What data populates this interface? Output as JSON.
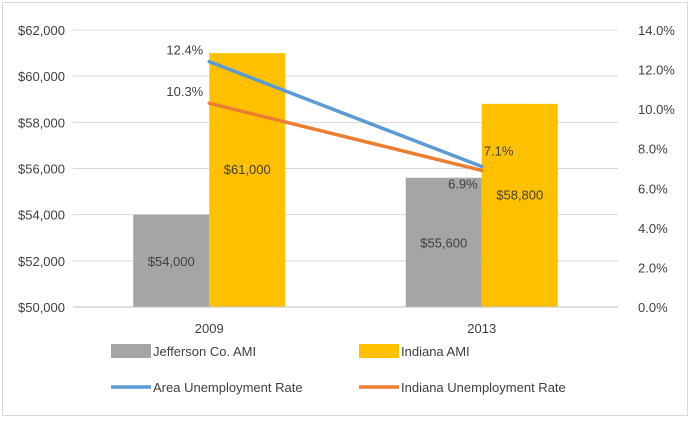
{
  "chart_data": {
    "type": "bar",
    "categories": [
      "2009",
      "2013"
    ],
    "bar_series": [
      {
        "name": "Jefferson Co. AMI",
        "values": [
          54000,
          55600
        ],
        "labels": [
          "$54,000",
          "$55,600"
        ],
        "color": "#a5a5a5"
      },
      {
        "name": "Indiana AMI",
        "values": [
          61000,
          58800
        ],
        "labels": [
          "$61,000",
          "$58,800"
        ],
        "color": "#ffc000"
      }
    ],
    "line_series": [
      {
        "name": "Area Unemployment Rate",
        "values": [
          12.4,
          7.1
        ],
        "labels": [
          "12.4%",
          "7.1%"
        ],
        "color": "#5b9bd5"
      },
      {
        "name": "Indiana Unemployment Rate",
        "values": [
          10.3,
          6.9
        ],
        "labels": [
          "10.3%",
          "6.9%"
        ],
        "color": "#ed7d31"
      }
    ],
    "ylim": [
      50000,
      62000
    ],
    "yticks": [
      50000,
      52000,
      54000,
      56000,
      58000,
      60000,
      62000
    ],
    "ytick_labels": [
      "$50,000",
      "$52,000",
      "$54,000",
      "$56,000",
      "$58,000",
      "$60,000",
      "$62,000"
    ],
    "y2lim": [
      0,
      14
    ],
    "y2ticks": [
      0,
      2,
      4,
      6,
      8,
      10,
      12,
      14
    ],
    "y2tick_labels": [
      "0.0%",
      "2.0%",
      "4.0%",
      "6.0%",
      "8.0%",
      "10.0%",
      "12.0%",
      "14.0%"
    ],
    "gridlines": true,
    "legend_position": "bottom"
  }
}
